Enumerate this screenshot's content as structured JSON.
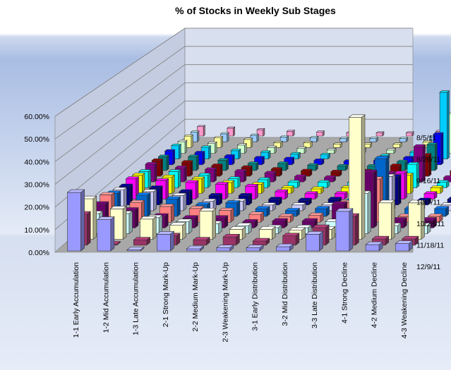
{
  "chart_data": {
    "type": "bar3d",
    "title": "% of Stocks in Weekly  Sub Stages",
    "ylim": [
      0,
      60
    ],
    "yticks": [
      "0.00%",
      "10.00%",
      "20.00%",
      "30.00%",
      "40.00%",
      "50.00%",
      "60.00%"
    ],
    "grid": true,
    "categories": [
      "1-1 Early Accumulation",
      "1-2 Mid Accumulation",
      "1-3 Late Accumulation",
      "2-1 Strong Mark-Up",
      "2-2 Medium Mark-Up",
      "2-3 Weakening Mark-Up",
      "3-1 Early Distribution",
      "3-2 Mid Distribution",
      "3-3 Late Distribution",
      "4-1 Strong Decline",
      "4-2 Medium Decline",
      "4-3 Weakening Decline"
    ],
    "depth_labels": [
      "8/5/11",
      "8/26/11",
      "9/16/11",
      "10/7/11",
      "10/28/11",
      "11/18/11",
      "12/9/11"
    ],
    "series_colors": [
      "#9999ff",
      "#993366",
      "#ffffcc",
      "#ccffff",
      "#660066",
      "#ff8080",
      "#0066cc",
      "#ccccff",
      "#000080",
      "#ff00ff",
      "#ffff00",
      "#00ffff",
      "#800080",
      "#800000",
      "#008080",
      "#0000ff",
      "#00ccff",
      "#ccffcc",
      "#ffff99",
      "#99ccff",
      "#ff99cc"
    ],
    "series": [
      {
        "values": [
          28.0,
          15.0,
          0.5,
          8.0,
          1.0,
          1.5,
          1.5,
          2.0,
          8.0,
          19.0,
          3.0,
          3.5
        ]
      },
      {
        "values": [
          15.0,
          0.5,
          2.5,
          4.5,
          2.5,
          4.0,
          2.0,
          4.5,
          8.5,
          14.0,
          3.0,
          3.0
        ]
      },
      {
        "values": [
          20.0,
          15.0,
          10.0,
          7.0,
          14.0,
          5.0,
          5.0,
          4.5,
          5.0,
          60.0,
          18.0,
          18.0
        ]
      },
      {
        "values": [
          10.0,
          10.0,
          8.0,
          6.0,
          5.0,
          4.0,
          3.0,
          3.0,
          6.0,
          20.0,
          4.0,
          4.0
        ]
      },
      {
        "values": [
          12.0,
          9.0,
          6.0,
          5.0,
          5.0,
          3.0,
          3.5,
          3.5,
          12.0,
          28.0,
          4.0,
          4.0
        ]
      },
      {
        "values": [
          14.0,
          10.0,
          8.0,
          7.0,
          6.0,
          4.0,
          3.0,
          3.5,
          10.0,
          22.0,
          3.0,
          3.0
        ]
      },
      {
        "values": [
          12.0,
          11.0,
          9.0,
          6.0,
          7.0,
          4.0,
          3.0,
          4.0,
          8.0,
          30.0,
          4.0,
          4.0
        ]
      },
      {
        "values": [
          11.0,
          10.0,
          8.0,
          5.0,
          5.0,
          3.0,
          3.0,
          3.0,
          6.0,
          18.0,
          3.0,
          3.0
        ]
      },
      {
        "values": [
          10.0,
          9.0,
          7.0,
          5.0,
          5.0,
          3.0,
          2.5,
          3.0,
          7.0,
          15.0,
          2.5,
          3.0
        ]
      },
      {
        "values": [
          11.0,
          10.0,
          9.0,
          8.0,
          7.0,
          4.0,
          3.0,
          3.0,
          6.0,
          14.0,
          3.0,
          3.0
        ]
      },
      {
        "values": [
          10.0,
          9.0,
          8.0,
          6.0,
          5.0,
          3.0,
          2.5,
          3.0,
          5.0,
          10.0,
          3.0,
          3.0
        ]
      },
      {
        "values": [
          9.0,
          9.0,
          7.0,
          5.0,
          4.5,
          3.0,
          3.0,
          3.0,
          6.0,
          13.0,
          3.0,
          3.0
        ]
      },
      {
        "values": [
          10.0,
          8.0,
          7.0,
          6.0,
          5.0,
          3.0,
          2.5,
          3.0,
          5.0,
          20.0,
          2.5,
          2.5
        ]
      },
      {
        "values": [
          9.0,
          8.0,
          6.0,
          5.0,
          4.0,
          3.0,
          2.5,
          3.0,
          6.0,
          12.0,
          3.0,
          3.0
        ]
      },
      {
        "values": [
          8.0,
          8.0,
          6.0,
          4.0,
          4.0,
          3.0,
          2.5,
          2.5,
          5.0,
          15.0,
          2.5,
          2.5
        ]
      },
      {
        "values": [
          8.0,
          7.0,
          5.0,
          4.0,
          3.5,
          2.5,
          2.0,
          2.5,
          4.0,
          18.0,
          2.0,
          2.5
        ]
      },
      {
        "values": [
          8.0,
          7.0,
          5.0,
          4.0,
          3.0,
          2.5,
          2.0,
          2.0,
          4.0,
          40.0,
          2.0,
          2.0
        ]
      },
      {
        "values": [
          7.0,
          6.0,
          5.0,
          3.5,
          3.0,
          2.0,
          2.0,
          2.0,
          4.0,
          24.0,
          2.0,
          2.0
        ]
      },
      {
        "values": [
          7.0,
          6.0,
          5.0,
          3.0,
          3.0,
          2.0,
          2.0,
          2.0,
          3.5,
          48.0,
          2.0,
          2.0
        ]
      },
      {
        "values": [
          6.0,
          5.0,
          4.0,
          3.0,
          2.5,
          2.0,
          2.0,
          2.0,
          3.0,
          12.0,
          2.0,
          2.0
        ]
      },
      {
        "values": [
          6.0,
          5.0,
          4.0,
          3.0,
          2.5,
          2.0,
          2.0,
          2.0,
          3.0,
          22.0,
          2.0,
          2.0
        ]
      }
    ]
  }
}
